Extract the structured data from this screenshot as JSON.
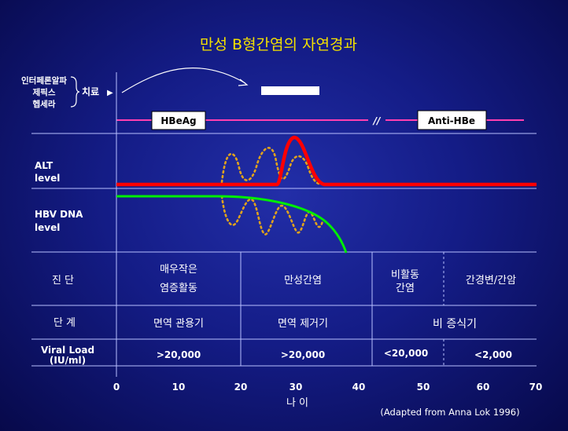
{
  "title": "만성 B형간염의 자연경과",
  "treatment": {
    "drugs": [
      "인터페론알파",
      "제픽스",
      "헵세라"
    ],
    "label": "치료",
    "arrow_glyph": "▶"
  },
  "markers": {
    "hbeag": "HBeAg",
    "break_symbol": "//",
    "anti_hbe": "Anti-HBe"
  },
  "curves": {
    "alt_label": [
      "ALT",
      "level"
    ],
    "hbv_label": [
      "HBV DNA",
      "level"
    ]
  },
  "table": {
    "rows": [
      {
        "header": "진  단",
        "cells": [
          [
            "매우작은",
            "염증활동"
          ],
          [
            "만성간염"
          ],
          [
            "비활동",
            "간염"
          ],
          [
            "간경변/간암"
          ]
        ]
      },
      {
        "header": "단  계",
        "cells": [
          [
            "면역 관용기"
          ],
          [
            "면역 제거기"
          ],
          [
            "비  증식기"
          ]
        ]
      },
      {
        "header": [
          "Viral Load",
          "(IU/ml)"
        ],
        "cells": [
          [
            ">20,000"
          ],
          [
            ">20,000"
          ],
          [
            "<20,000"
          ],
          [
            "<2,000"
          ]
        ]
      }
    ]
  },
  "axis": {
    "ticks": [
      "0",
      "10",
      "20",
      "30",
      "40",
      "50",
      "60",
      "70"
    ],
    "label": "나  이"
  },
  "citation": "(Adapted from Anna Lok 1996)",
  "colors": {
    "background": "#141c86",
    "title": "#f3e000",
    "alt_line": "#ff0000",
    "hbv_line": "#00ee00",
    "dotted": "#e0a21c",
    "marker_line": "#ff3fb0",
    "grid": "#b8c0ff"
  }
}
